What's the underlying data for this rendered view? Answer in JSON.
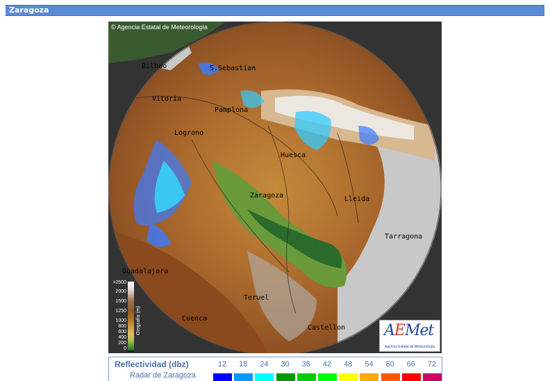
{
  "window": {
    "title": "Zaragoza"
  },
  "map": {
    "credit": "Agencia Estatal de Meteorología",
    "credit_symbol": "©",
    "cities": [
      "Bilbao",
      "S.Sebastian",
      "Vitoria",
      "Pamplona",
      "Logrono",
      "Huesca",
      "Zaragoza",
      "Lleida",
      "Tarragona",
      "Guadalajara",
      "Teruel",
      "Cuenca",
      "Castellon"
    ],
    "logo": {
      "text_a": "A",
      "text_e": "E",
      "text_rest": "Met",
      "subtitle": "Agencia Estatal de Meteorología"
    }
  },
  "orography": {
    "title": "Orografía (m)",
    "levels": [
      ">2500",
      "2000",
      "1500",
      "1250",
      "1000",
      "800",
      "600",
      "400",
      "200",
      "0"
    ]
  },
  "legend": {
    "title": "Reflectividad (dbz)",
    "subtitle": "Radar de Zaragoza",
    "values": [
      "12",
      "18",
      "24",
      "30",
      "36",
      "42",
      "48",
      "54",
      "60",
      "66",
      "72"
    ],
    "colors": [
      "#0000ff",
      "#0099ff",
      "#00ffff",
      "#009900",
      "#00cc00",
      "#00ff00",
      "#ffff00",
      "#ffaa00",
      "#ff5500",
      "#ff0000",
      "#cc0066"
    ]
  }
}
